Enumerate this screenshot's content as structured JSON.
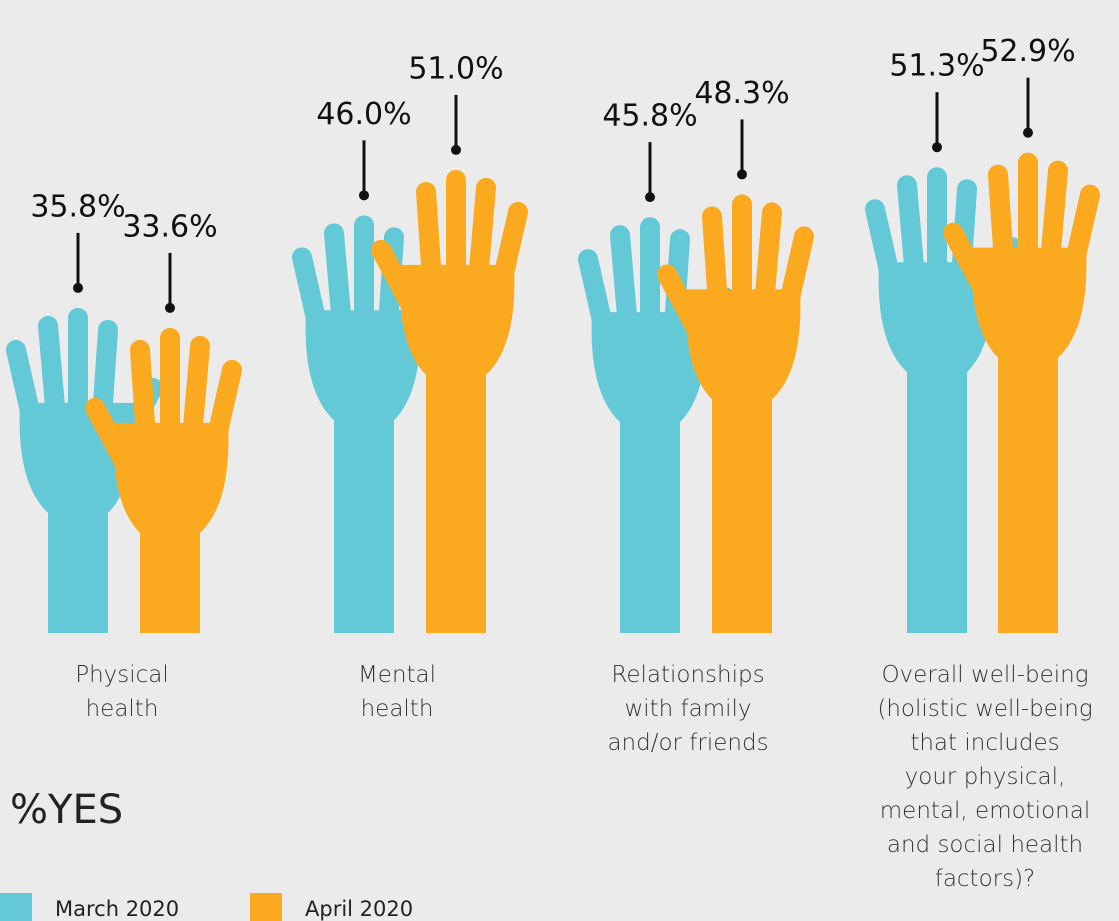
{
  "chart_data": {
    "type": "pictograph",
    "legend_title": "%YES",
    "categories": [
      "Physical\nhealth",
      "Mental\nhealth",
      "Relationships\nwith family\nand/or friends",
      "Overall well-being\n(holistic well-being\nthat includes\nyour physical,\nmental, emotional\nand social health\nfactors)?"
    ],
    "series": [
      {
        "name": "March 2020",
        "color": "#63c9d6",
        "values": [
          35.8,
          46.0,
          45.8,
          51.3
        ],
        "value_labels": [
          "35.8%",
          "46.0%",
          "45.8%",
          "51.3%"
        ]
      },
      {
        "name": "April 2020",
        "color": "#fbaa1f",
        "values": [
          33.6,
          51.0,
          48.3,
          52.9
        ],
        "value_labels": [
          "33.6%",
          "51.0%",
          "48.3%",
          "52.9%"
        ]
      }
    ]
  }
}
